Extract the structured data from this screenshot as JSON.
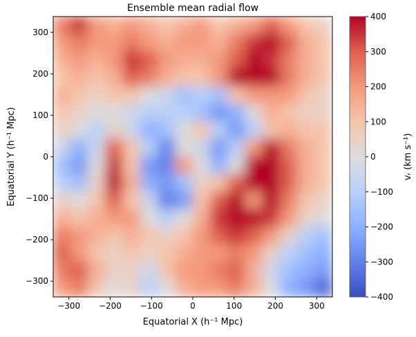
{
  "chart_data": {
    "type": "heatmap",
    "title": "Ensemble mean radial flow",
    "xlabel": "Equatorial X (h⁻¹ Mpc)",
    "ylabel": "Equatorial Y (h⁻¹ Mpc)",
    "colorbar_label": "vᵣ (km s⁻¹)",
    "colormap": "coolwarm",
    "xlim": [
      -338,
      338
    ],
    "ylim": [
      -338,
      338
    ],
    "clim": [
      -400,
      400
    ],
    "xticks": [
      -300,
      -200,
      -100,
      0,
      100,
      200,
      300
    ],
    "yticks": [
      -300,
      -200,
      -100,
      0,
      100,
      200,
      300
    ],
    "xtick_labels": [
      "−300",
      "−200",
      "−100",
      "0",
      "100",
      "200",
      "300"
    ],
    "ytick_labels": [
      "−300",
      "−200",
      "−100",
      "0",
      "100",
      "200",
      "300"
    ],
    "cbar_ticks": [
      -400,
      -300,
      -200,
      -100,
      0,
      100,
      200,
      300,
      400
    ],
    "cbar_tick_labels": [
      "−400",
      "−300",
      "−200",
      "−100",
      "0",
      "100",
      "200",
      "300",
      "400"
    ],
    "grid": false,
    "x_centers": [
      -317,
      -275,
      -233,
      -190,
      -148,
      -106,
      -63,
      -21,
      21,
      63,
      106,
      148,
      190,
      233,
      275,
      317
    ],
    "y_centers": [
      317,
      275,
      233,
      190,
      148,
      106,
      63,
      21,
      -21,
      -63,
      -106,
      -148,
      -190,
      -233,
      -275,
      -317
    ],
    "values": [
      [
        250,
        350,
        200,
        150,
        200,
        150,
        100,
        150,
        200,
        100,
        150,
        200,
        300,
        200,
        100,
        50
      ],
      [
        200,
        250,
        200,
        200,
        250,
        200,
        150,
        200,
        200,
        150,
        250,
        350,
        400,
        300,
        150,
        100
      ],
      [
        150,
        200,
        150,
        200,
        350,
        300,
        200,
        150,
        150,
        200,
        300,
        400,
        350,
        250,
        150,
        100
      ],
      [
        100,
        150,
        100,
        150,
        300,
        250,
        150,
        100,
        100,
        200,
        400,
        400,
        400,
        250,
        150,
        100
      ],
      [
        150,
        100,
        50,
        100,
        100,
        0,
        -50,
        -150,
        -100,
        -150,
        100,
        200,
        200,
        200,
        100,
        50
      ],
      [
        100,
        50,
        0,
        0,
        -50,
        -100,
        -100,
        -100,
        -150,
        -250,
        -200,
        0,
        150,
        100,
        50,
        50
      ],
      [
        50,
        0,
        -100,
        50,
        -50,
        -200,
        -150,
        0,
        100,
        -100,
        -250,
        -100,
        100,
        150,
        100,
        100
      ],
      [
        -50,
        -200,
        -50,
        300,
        100,
        -100,
        -300,
        0,
        -50,
        -250,
        -100,
        200,
        400,
        250,
        150,
        100
      ],
      [
        -150,
        -250,
        0,
        350,
        100,
        -250,
        -300,
        200,
        0,
        -200,
        0,
        400,
        400,
        300,
        150,
        100
      ],
      [
        -100,
        -150,
        50,
        400,
        150,
        -200,
        -250,
        -150,
        50,
        100,
        300,
        400,
        400,
        300,
        150,
        100
      ],
      [
        50,
        0,
        100,
        300,
        100,
        -50,
        -300,
        -250,
        100,
        300,
        400,
        200,
        400,
        250,
        100,
        50
      ],
      [
        150,
        100,
        150,
        200,
        200,
        0,
        -100,
        0,
        150,
        350,
        400,
        400,
        350,
        200,
        50,
        0
      ],
      [
        250,
        200,
        150,
        100,
        150,
        100,
        50,
        100,
        200,
        300,
        350,
        300,
        200,
        50,
        -100,
        -150
      ],
      [
        300,
        200,
        100,
        50,
        100,
        50,
        100,
        150,
        200,
        200,
        250,
        200,
        50,
        -100,
        -150,
        -200
      ],
      [
        250,
        300,
        150,
        50,
        50,
        -50,
        100,
        200,
        200,
        250,
        300,
        150,
        -50,
        -150,
        -200,
        -250
      ],
      [
        200,
        250,
        100,
        0,
        50,
        -100,
        0,
        150,
        200,
        200,
        250,
        150,
        0,
        -200,
        -250,
        -350
      ]
    ]
  }
}
